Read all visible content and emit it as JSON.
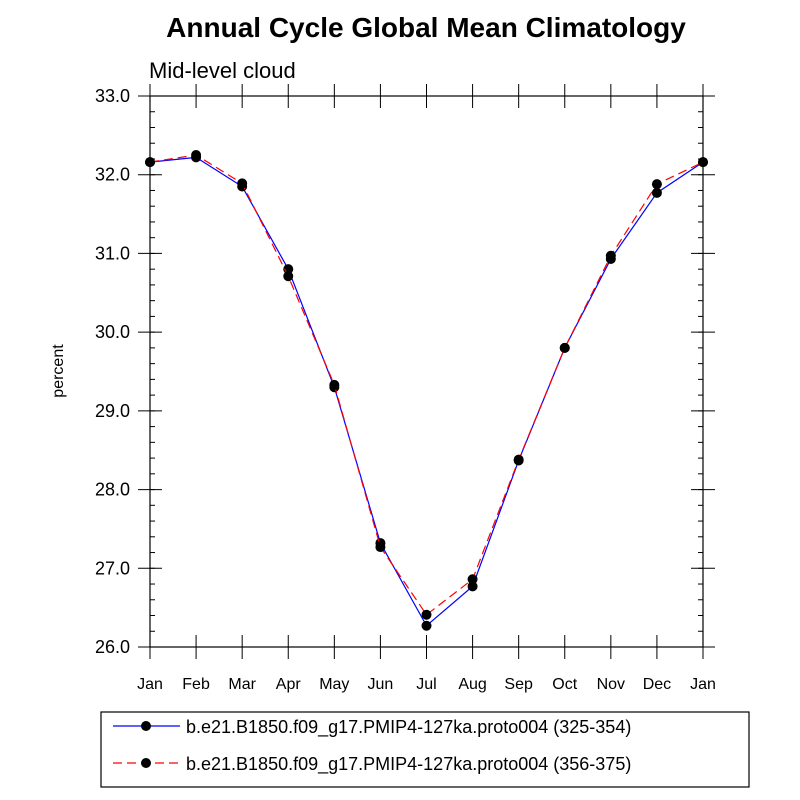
{
  "chart_data": {
    "type": "line",
    "title": "Annual Cycle Global Mean Climatology",
    "subtitle": "Mid-level cloud",
    "xlabel": "",
    "ylabel": "percent",
    "categories": [
      "Jan",
      "Feb",
      "Mar",
      "Apr",
      "May",
      "Jun",
      "Jul",
      "Aug",
      "Sep",
      "Oct",
      "Nov",
      "Dec",
      "Jan"
    ],
    "ylim": [
      26.0,
      33.0
    ],
    "yticks": [
      26.0,
      27.0,
      28.0,
      29.0,
      30.0,
      31.0,
      32.0,
      33.0
    ],
    "ytick_labels": [
      "26.0",
      "27.0",
      "28.0",
      "29.0",
      "30.0",
      "31.0",
      "32.0",
      "33.0"
    ],
    "grid": false,
    "legend_position": "bottom",
    "series": [
      {
        "name": "b.e21.B1850.f09_g17.PMIP4-127ka.proto004 (325-354)",
        "color": "#0000ff",
        "line_style": "solid",
        "marker": "filled-circle",
        "values": [
          32.16,
          32.22,
          31.85,
          30.8,
          29.3,
          27.32,
          26.27,
          26.77,
          28.37,
          29.8,
          30.93,
          31.77,
          32.16
        ]
      },
      {
        "name": "b.e21.B1850.f09_g17.PMIP4-127ka.proto004 (356-375)",
        "color": "#ff0000",
        "line_style": "dashed",
        "marker": "filled-circle",
        "values": [
          32.16,
          32.25,
          31.89,
          30.71,
          29.33,
          27.27,
          26.41,
          26.86,
          28.38,
          29.8,
          30.97,
          31.88,
          32.16
        ]
      }
    ]
  }
}
